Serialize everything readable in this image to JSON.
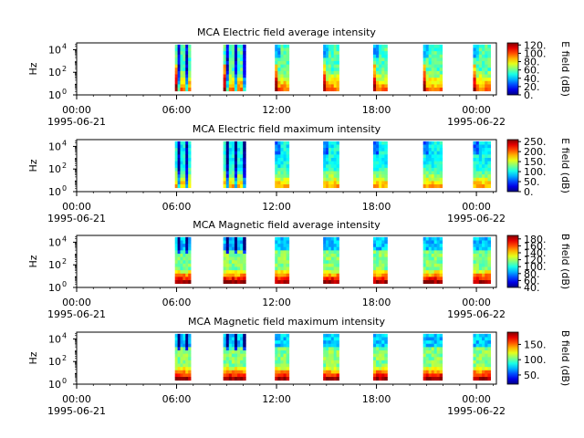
{
  "chart_data": [
    {
      "type": "heatmap",
      "title": "MCA  Electric field average intensity",
      "ylabel": "Hz",
      "colorbar_label": "E field (dB)",
      "colorbar_ticks": [
        "0.",
        "20.",
        "40.",
        "60.",
        "80.",
        "100.",
        "120."
      ],
      "clim": [
        0,
        125
      ],
      "base_level": 0.45,
      "texture": "electric",
      "ylim_log10": [
        0,
        4.6
      ],
      "y_ticks": [
        {
          "exp": "0",
          "v": 0
        },
        {
          "exp": "2",
          "v": 2
        },
        {
          "exp": "4",
          "v": 4
        }
      ]
    },
    {
      "type": "heatmap",
      "title": "MCA  Electric field maximum intensity",
      "ylabel": "Hz",
      "colorbar_label": "E field (dB)",
      "colorbar_ticks": [
        "0.",
        "50.",
        "100.",
        "150.",
        "200.",
        "250."
      ],
      "clim": [
        0,
        260
      ],
      "base_level": 0.38,
      "texture": "electric",
      "ylim_log10": [
        0,
        4.6
      ],
      "y_ticks": [
        {
          "exp": "0",
          "v": 0
        },
        {
          "exp": "2",
          "v": 2
        },
        {
          "exp": "4",
          "v": 4
        }
      ]
    },
    {
      "type": "heatmap",
      "title": "MCA  Magnetic field average intensity",
      "ylabel": "Hz",
      "colorbar_label": "B field (dB)",
      "colorbar_ticks": [
        "40.",
        "60.",
        "80.",
        "100.",
        "120.",
        "140.",
        "160.",
        "180."
      ],
      "clim": [
        40,
        190
      ],
      "base_level": 0.5,
      "texture": "magnetic",
      "ylim_log10": [
        0,
        4.6
      ],
      "y_ticks": [
        {
          "exp": "0",
          "v": 0
        },
        {
          "exp": "2",
          "v": 2
        },
        {
          "exp": "4",
          "v": 4
        }
      ]
    },
    {
      "type": "heatmap",
      "title": "MCA  Magnetic field maximum intensity",
      "ylabel": "Hz",
      "colorbar_label": "B field (dB)",
      "colorbar_ticks": [
        "50.",
        "100.",
        "150."
      ],
      "clim": [
        20,
        190
      ],
      "base_level": 0.5,
      "texture": "magnetic",
      "ylim_log10": [
        0,
        4.6
      ],
      "y_ticks": [
        {
          "exp": "0",
          "v": 0
        },
        {
          "exp": "2",
          "v": 2
        },
        {
          "exp": "4",
          "v": 4
        }
      ]
    }
  ],
  "x_axis": {
    "range_hours": [
      0,
      25.2
    ],
    "major_ticks": [
      {
        "h": 0,
        "time": "00:00",
        "date": "1995-06-21"
      },
      {
        "h": 6,
        "time": "06:00",
        "date": ""
      },
      {
        "h": 12,
        "time": "12:00",
        "date": ""
      },
      {
        "h": 18,
        "time": "18:00",
        "date": ""
      },
      {
        "h": 24,
        "time": "00:00",
        "date": "1995-06-22"
      }
    ],
    "minor_tick_step_hours": 1
  },
  "data_passes_hours": [
    [
      5.9,
      6.85
    ],
    [
      8.8,
      10.15
    ],
    [
      11.9,
      12.75
    ],
    [
      14.8,
      15.75
    ],
    [
      17.8,
      18.65
    ],
    [
      20.8,
      21.95
    ],
    [
      23.8,
      24.85
    ]
  ],
  "freq_range_log10": [
    0.35,
    4.45
  ],
  "colors": {
    "axis": "#000000",
    "background": "#ffffff"
  }
}
